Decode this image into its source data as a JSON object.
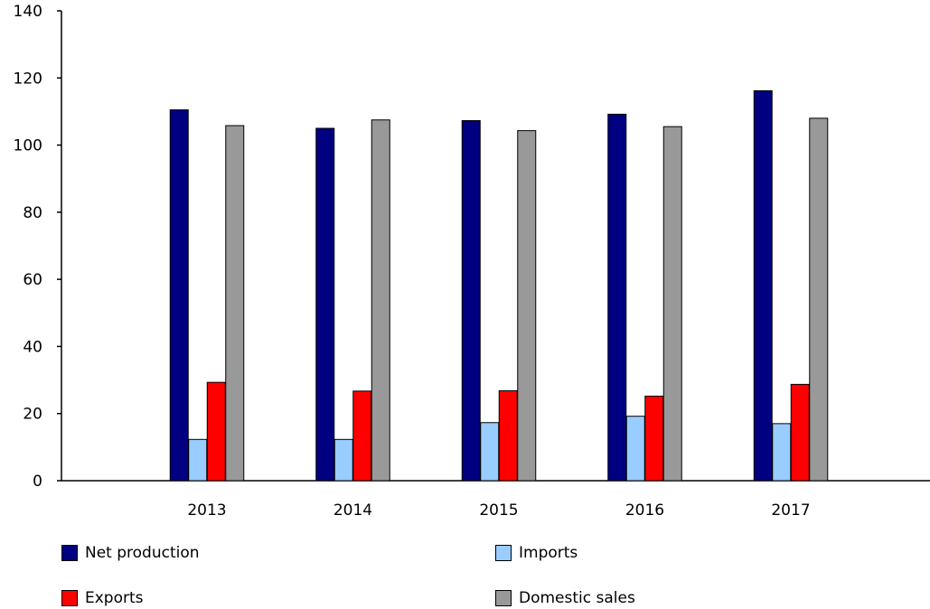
{
  "chart_data": {
    "type": "bar",
    "title": "",
    "xlabel": "",
    "ylabel": "",
    "categories": [
      "2013",
      "2014",
      "2015",
      "2016",
      "2017"
    ],
    "ylim": [
      0,
      140
    ],
    "yticks": [
      0,
      20,
      40,
      60,
      80,
      100,
      120,
      140
    ],
    "grid": false,
    "legend_position": "bottom",
    "series": [
      {
        "name": "Net production",
        "color": "#000080",
        "values": [
          110.5,
          105,
          107.3,
          109.2,
          116.2
        ]
      },
      {
        "name": "Imports",
        "color": "#99ccff",
        "values": [
          12.3,
          12.3,
          17.3,
          19.2,
          17
        ]
      },
      {
        "name": "Exports",
        "color": "#ff0000",
        "values": [
          29.3,
          26.7,
          26.8,
          25.2,
          28.7
        ]
      },
      {
        "name": "Domestic sales",
        "color": "#999999",
        "values": [
          105.8,
          107.5,
          104.3,
          105.5,
          108
        ]
      }
    ]
  }
}
